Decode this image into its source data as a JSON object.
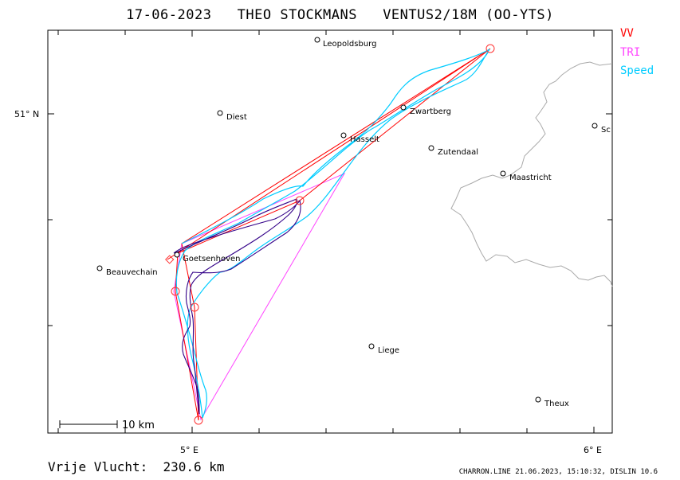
{
  "title": {
    "date": "17-06-2023",
    "pilot": "THEO STOCKMANS",
    "glider": "VENTUS2/18M (OO-YTS)"
  },
  "legend": {
    "vv": {
      "label": "VV",
      "color": "#ff0000"
    },
    "tri": {
      "label": "TRI",
      "color": "#ff44ff"
    },
    "speed": {
      "label": "Speed",
      "color": "#00ccff"
    }
  },
  "axes": {
    "lat_tick": "51° N",
    "lon_ticks": [
      "5° E",
      "6° E"
    ]
  },
  "scale_bar": {
    "label": "10 km"
  },
  "places": [
    {
      "name": "Leopoldsburg"
    },
    {
      "name": "Diest"
    },
    {
      "name": "Zwartberg"
    },
    {
      "name": "Hasselt"
    },
    {
      "name": "Zutendaal"
    },
    {
      "name": "Maastricht"
    },
    {
      "name": "Sc"
    },
    {
      "name": "Goetsenhoven"
    },
    {
      "name": "Beauvechain"
    },
    {
      "name": "Liege"
    },
    {
      "name": "Theux"
    }
  ],
  "footer": {
    "distance": "Vrije Vlucht:  230.6 km",
    "info": "CHARRON.LINE 21.06.2023, 15:10:32, DISLIN 10.6"
  }
}
